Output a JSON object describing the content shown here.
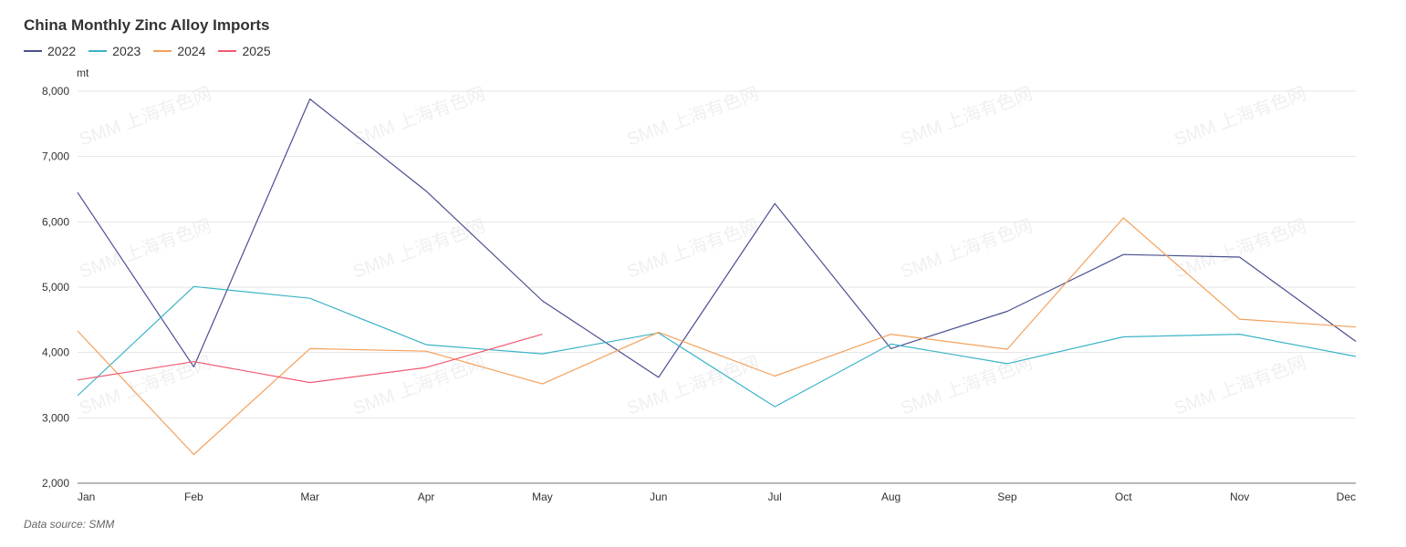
{
  "chart_data": {
    "type": "line",
    "title": "China Monthly Zinc Alloy Imports",
    "ylabel": "mt",
    "xlabel": "",
    "categories": [
      "Jan",
      "Feb",
      "Mar",
      "Apr",
      "May",
      "Jun",
      "Jul",
      "Aug",
      "Sep",
      "Oct",
      "Nov",
      "Dec"
    ],
    "ylim": [
      2000,
      8000
    ],
    "yticks": [
      2000,
      3000,
      4000,
      5000,
      6000,
      7000,
      8000
    ],
    "ytick_labels": [
      "2,000",
      "3,000",
      "4,000",
      "5,000",
      "6,000",
      "7,000",
      "8,000"
    ],
    "grid": true,
    "legend_position": "top-left",
    "series": [
      {
        "name": "2022",
        "color": "#4a4f8f",
        "values": [
          6450,
          3780,
          7880,
          6470,
          4790,
          3620,
          6280,
          4060,
          4630,
          5500,
          5460,
          4170
        ]
      },
      {
        "name": "2023",
        "color": "#3cb3c9",
        "values": [
          3340,
          5010,
          4830,
          4120,
          3980,
          4300,
          3170,
          4130,
          3830,
          4240,
          4280,
          3940
        ]
      },
      {
        "name": "2024",
        "color": "#f4a05a",
        "values": [
          4330,
          2440,
          4060,
          4020,
          3520,
          4310,
          3640,
          4280,
          4050,
          6060,
          4510,
          4390
        ]
      },
      {
        "name": "2025",
        "color": "#f05a72",
        "values": [
          3580,
          3860,
          3540,
          3770,
          4280,
          null,
          null,
          null,
          null,
          null,
          null,
          null
        ]
      }
    ]
  },
  "watermark": "SMM 上海有色网",
  "source_text": "Data source:  SMM"
}
